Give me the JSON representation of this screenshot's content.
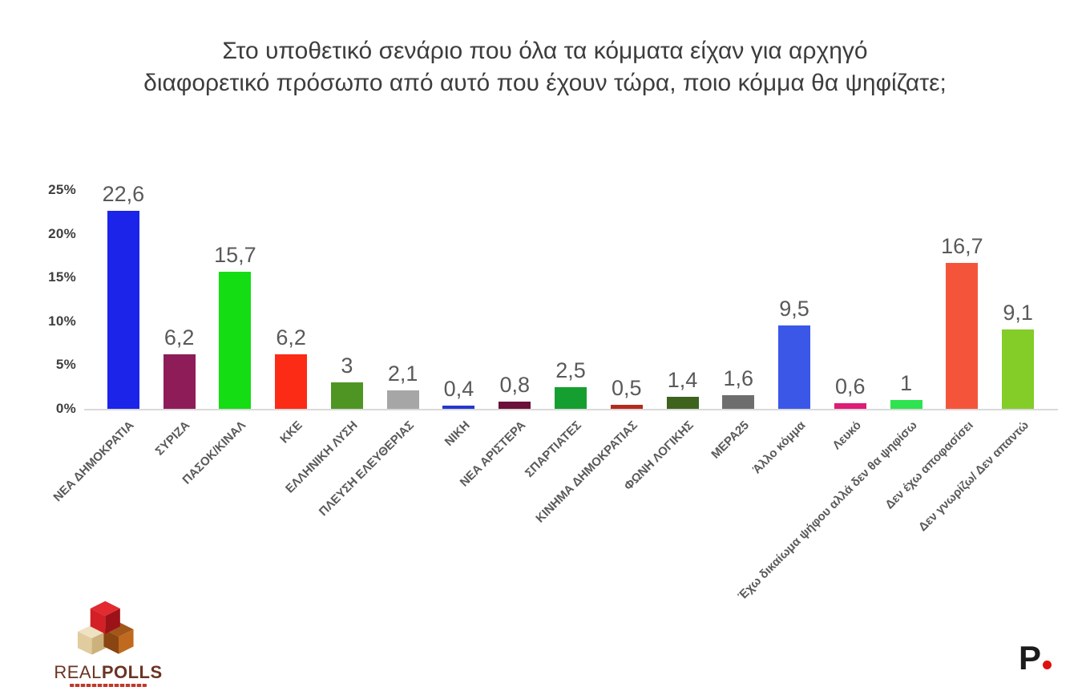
{
  "title_line1": "Στο υποθετικό σενάριο που όλα τα κόμματα είχαν για αρχηγό",
  "title_line2": "διαφορετικό πρόσωπο από αυτό που έχουν τώρα, ποιο κόμμα θα ψηφίζατε;",
  "chart_data": {
    "type": "bar",
    "title": "Στο υποθετικό σενάριο που όλα τα κόμματα είχαν για αρχηγό διαφορετικό πρόσωπο από αυτό που έχουν τώρα, ποιο κόμμα θα ψηφίζατε;",
    "categories": [
      "ΝΕΑ ΔΗΜΟΚΡΑΤΙΑ",
      "ΣΥΡΙΖΑ",
      "ΠΑΣΟΚ/ΚΙΝΑΛ",
      "ΚΚΕ",
      "ΕΛΛΗΝΙΚΗ ΛΥΣΗ",
      "ΠΛΕΥΣΗ ΕΛΕΥΘΕΡΙΑΣ",
      "ΝΙΚΗ",
      "ΝΕΑ ΑΡΙΣΤΕΡΑ",
      "ΣΠΑΡΤΙΑΤΕΣ",
      "ΚΙΝΗΜΑ ΔΗΜΟΚΡΑΤΙΑΣ",
      "ΦΩΝΗ ΛΟΓΙΚΗΣ",
      "ΜΕΡΑ25",
      "Άλλο κόμμα",
      "Λευκό",
      "Έχω δικαίωμα ψήφου αλλά δεν θα ψηφίσω",
      "Δεν έχω αποφασίσει",
      "Δεν γνωρίζω/ Δεν απαντώ"
    ],
    "values": [
      22.6,
      6.2,
      15.7,
      6.2,
      3,
      2.1,
      0.4,
      0.8,
      2.5,
      0.5,
      1.4,
      1.6,
      9.5,
      0.6,
      1,
      16.7,
      9.1
    ],
    "value_labels": [
      "22,6",
      "6,2",
      "15,7",
      "6,2",
      "3",
      "2,1",
      "0,4",
      "0,8",
      "2,5",
      "0,5",
      "1,4",
      "1,6",
      "9,5",
      "0,6",
      "1",
      "16,7",
      "9,1"
    ],
    "bar_colors": [
      "#1b24e8",
      "#8e1c58",
      "#14dd14",
      "#fb2b16",
      "#4f9523",
      "#a6a6a6",
      "#2438cc",
      "#6b1038",
      "#169f31",
      "#b52a1d",
      "#3d631d",
      "#6e6e6e",
      "#3a57e8",
      "#df1a78",
      "#2ee34f",
      "#f4553a",
      "#84cc28"
    ],
    "y_ticks": [
      "25%",
      "20%",
      "15%",
      "10%",
      "5%",
      "0%"
    ],
    "ylim": [
      0,
      25
    ],
    "grid": false,
    "legend": "none",
    "xlabel": "",
    "ylabel": ""
  },
  "footer": {
    "realpolls": {
      "brand_real": "REAL",
      "brand_polls": "POLLS"
    },
    "pronews": {
      "letter": "P"
    }
  },
  "colors": {
    "title_text": "#3d3d3d",
    "value_label": "#595959",
    "axis_tick": "#3f3f3f",
    "category_label": "#595959",
    "baseline": "#d9d9d9",
    "realpolls_brown": "#6b3424",
    "realpolls_red_cube": "#d42027",
    "realpolls_cream_cube": "#e8d9b5",
    "realpolls_brown_cube": "#b5651d",
    "pronews_black": "#1c1c1c",
    "pronews_red": "#e01010"
  }
}
